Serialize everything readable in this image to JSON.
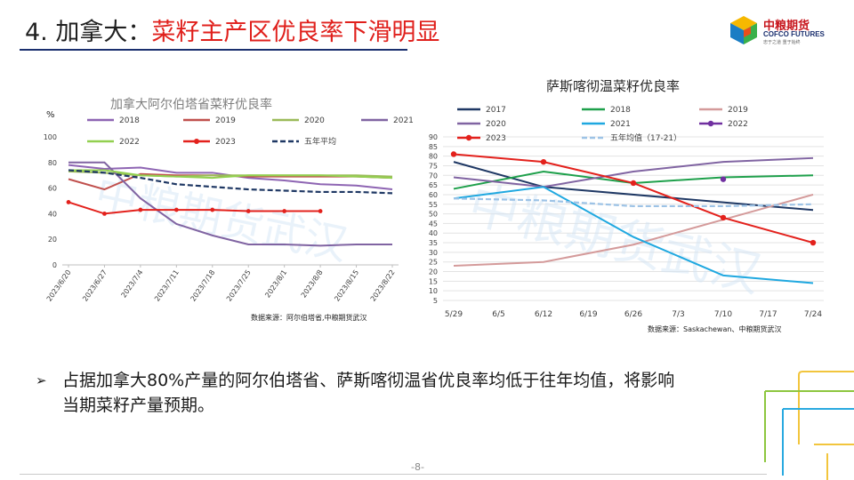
{
  "title": {
    "number": "4. 加拿大：",
    "highlight": "菜籽主产区优良率下滑明显"
  },
  "logo": {
    "name": "中粮期货",
    "en": "COFCO FUTURES",
    "slogan": "忠于之道 重于始终"
  },
  "left_chart": {
    "source_note": "数据来源：阿尔伯塔省,中粮期货武汉",
    "watermark": "中粮期货武汉"
  },
  "right_chart": {
    "source_note": "数据来源：Saskachewan、中粮期货武汉",
    "watermark": "中粮期货武汉"
  },
  "bullet": {
    "marker": "Ø",
    "text": "占据加拿大80%产量的阿尔伯塔省、萨斯喀彻温省优良率均低于往年均值，将影响当期菜籽产量预期。"
  },
  "footer": {
    "page": "-8-"
  },
  "chart_data": [
    {
      "type": "line",
      "title": "加拿大阿尔伯塔省菜籽优良率",
      "ylabel": "%",
      "ylim": [
        0,
        100
      ],
      "yticks": [
        0,
        20,
        40,
        60,
        80,
        100
      ],
      "x": [
        "2023/6/20",
        "2023/6/27",
        "2023/7/4",
        "2023/7/11",
        "2023/7/18",
        "2023/7/25",
        "2023/8/1",
        "2023/8/8",
        "2023/8/15",
        "2023/8/22"
      ],
      "grid": false,
      "legend": "top",
      "series": [
        {
          "name": "2018",
          "color": "#8e65b3",
          "style": "solid",
          "values": [
            78,
            75,
            76,
            72,
            72,
            68,
            66,
            63,
            62,
            59
          ]
        },
        {
          "name": "2019",
          "color": "#c0504d",
          "style": "solid",
          "values": [
            67,
            59,
            71,
            70,
            70,
            69,
            69,
            69,
            69,
            68
          ]
        },
        {
          "name": "2020",
          "color": "#9bbb59",
          "style": "solid",
          "values": [
            73,
            72,
            70,
            69,
            70,
            70,
            70,
            70,
            70,
            69
          ]
        },
        {
          "name": "2021",
          "color": "#8064a2",
          "style": "solid",
          "values": [
            80,
            80,
            52,
            32,
            23,
            16,
            16,
            15,
            16,
            16
          ]
        },
        {
          "name": "2022",
          "color": "#92d050",
          "style": "solid",
          "values": [
            74,
            74,
            70,
            69,
            68,
            70,
            70,
            70,
            69,
            68
          ]
        },
        {
          "name": "2023",
          "color": "#e3211c",
          "style": "solid",
          "marker": "dot",
          "values": [
            49,
            40,
            43,
            43,
            43,
            42,
            42,
            42,
            null,
            null
          ]
        },
        {
          "name": "五年平均",
          "color": "#1f3864",
          "style": "dash",
          "values": [
            74,
            72,
            68,
            63,
            61,
            59,
            58,
            57,
            57,
            56
          ]
        }
      ]
    },
    {
      "type": "line",
      "title": "萨斯喀彻温菜籽优良率",
      "ylim": [
        5,
        90
      ],
      "yticks": [
        5,
        10,
        15,
        20,
        25,
        30,
        35,
        40,
        45,
        50,
        55,
        60,
        65,
        70,
        75,
        80,
        85,
        90
      ],
      "x": [
        "5/29",
        "6/5",
        "6/12",
        "6/19",
        "6/26",
        "7/3",
        "7/10",
        "7/17",
        "7/24"
      ],
      "grid": true,
      "legend": "top",
      "series": [
        {
          "name": "2017",
          "color": "#1f3864",
          "style": "solid",
          "points": [
            [
              "5/29",
              77
            ],
            [
              "6/12",
              64
            ],
            [
              "7/24",
              52
            ]
          ]
        },
        {
          "name": "2018",
          "color": "#1ea04b",
          "style": "solid",
          "points": [
            [
              "5/29",
              63
            ],
            [
              "6/12",
              72
            ],
            [
              "6/26",
              66
            ],
            [
              "7/10",
              69
            ],
            [
              "7/24",
              70
            ]
          ]
        },
        {
          "name": "2019",
          "color": "#d49a9a",
          "style": "solid",
          "points": [
            [
              "5/29",
              23
            ],
            [
              "6/12",
              25
            ],
            [
              "6/26",
              34
            ],
            [
              "7/10",
              47
            ],
            [
              "7/24",
              60
            ]
          ]
        },
        {
          "name": "2020",
          "color": "#8064a2",
          "style": "solid",
          "points": [
            [
              "5/29",
              69
            ],
            [
              "6/12",
              64
            ],
            [
              "6/26",
              72
            ],
            [
              "7/10",
              77
            ],
            [
              "7/24",
              79
            ]
          ]
        },
        {
          "name": "2021",
          "color": "#1fa8e0",
          "style": "solid",
          "points": [
            [
              "5/29",
              58
            ],
            [
              "6/12",
              64
            ],
            [
              "6/26",
              38
            ],
            [
              "7/10",
              18
            ],
            [
              "7/24",
              14
            ]
          ]
        },
        {
          "name": "2022",
          "color": "#7030a0",
          "style": "solid",
          "marker": "dot",
          "points": [
            [
              "7/10",
              68
            ]
          ]
        },
        {
          "name": "2023",
          "color": "#e3211c",
          "style": "solid",
          "marker": "dot",
          "points": [
            [
              "5/29",
              81
            ],
            [
              "6/12",
              77
            ],
            [
              "6/26",
              66
            ],
            [
              "7/10",
              48
            ],
            [
              "7/24",
              35
            ]
          ]
        },
        {
          "name": "五年均值（17-21）",
          "color": "#9dc3e6",
          "style": "dash",
          "points": [
            [
              "5/29",
              58
            ],
            [
              "6/12",
              57
            ],
            [
              "6/26",
              54
            ],
            [
              "7/10",
              54
            ],
            [
              "7/24",
              55
            ]
          ]
        }
      ]
    }
  ]
}
